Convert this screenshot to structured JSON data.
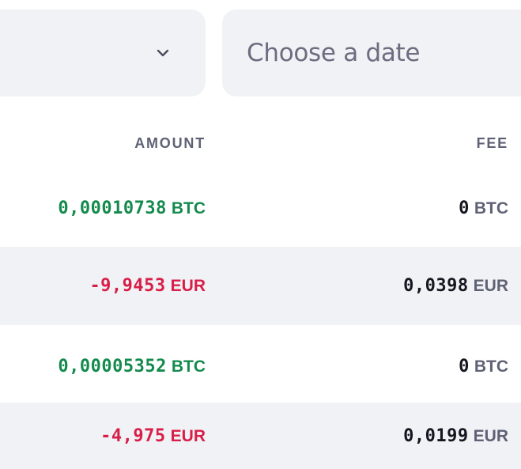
{
  "filters": {
    "select_icon": "chevron-down-icon",
    "date_placeholder": "Choose a date"
  },
  "table": {
    "headers": {
      "amount": "AMOUNT",
      "fee": "FEE"
    },
    "rows": [
      {
        "amount_value": "0,00010738",
        "amount_currency": "BTC",
        "amount_sign": "positive",
        "fee_value": "0",
        "fee_currency": "BTC"
      },
      {
        "amount_value": "-9,9453",
        "amount_currency": "EUR",
        "amount_sign": "negative",
        "fee_value": "0,0398",
        "fee_currency": "EUR"
      },
      {
        "amount_value": "0,00005352",
        "amount_currency": "BTC",
        "amount_sign": "positive",
        "fee_value": "0",
        "fee_currency": "BTC"
      },
      {
        "amount_value": "-4,975",
        "amount_currency": "EUR",
        "amount_sign": "negative",
        "fee_value": "0,0199",
        "fee_currency": "EUR"
      }
    ]
  },
  "colors": {
    "positive": "#148a4d",
    "negative": "#d81e48",
    "header_text": "#5f6275",
    "field_background": "#f1f2f5"
  }
}
